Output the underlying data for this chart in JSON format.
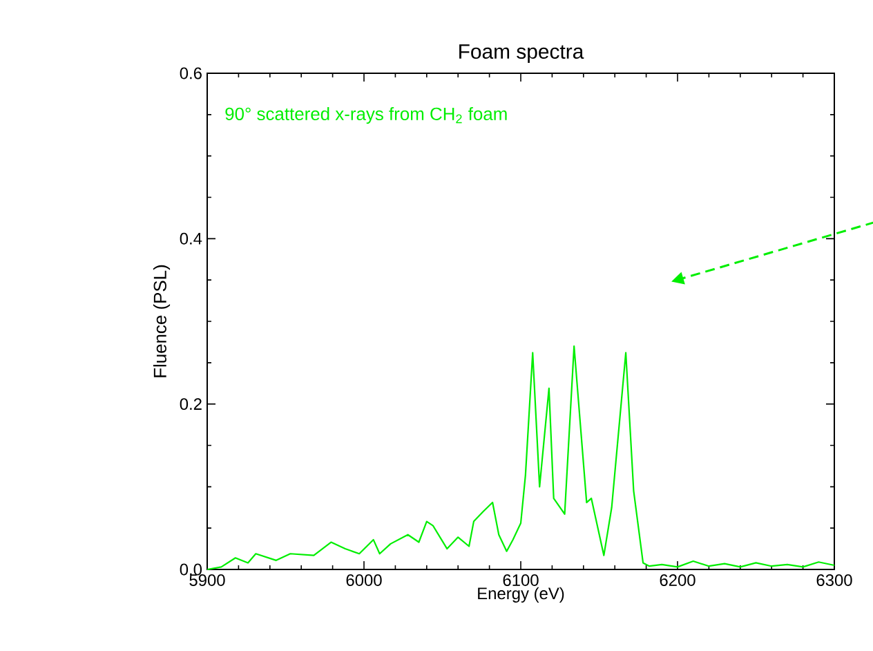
{
  "chart_data": {
    "type": "line",
    "title": "Foam spectra",
    "xlabel": "Energy (eV)",
    "ylabel": "Fluence (PSL)",
    "annotations": [
      "90° scattered x-rays from CH$_{2}$ foam"
    ],
    "xlim": [
      5900,
      6300
    ],
    "xticks": [
      5900,
      6000,
      6100,
      6200,
      6300
    ],
    "ylim": [
      0,
      0.6
    ],
    "yticks": [
      {
        "value": 0,
        "label": "0.0"
      },
      0.2,
      0.4,
      0.6
    ],
    "marker": "none",
    "line_style": "solid",
    "series": [
      {
        "color": "#00ee00",
        "x": [
          5900,
          5909,
          5918,
          5926,
          5931,
          5944,
          5953,
          5968,
          5979,
          5988,
          5997,
          6006,
          6010,
          6017,
          6028,
          6035,
          6040,
          6044,
          6053,
          6060,
          6067,
          6070,
          6076,
          6082,
          6086,
          6091,
          6095,
          6100,
          6103,
          6107.6,
          6112,
          6118,
          6121,
          6128,
          6134,
          6142,
          6145,
          6153,
          6158,
          6167,
          6172,
          6178,
          6182,
          6190,
          6200,
          6210,
          6220,
          6230,
          6240,
          6250,
          6260,
          6270,
          6280,
          6290,
          6300
        ],
        "values": [
          0,
          0.003,
          0.014,
          0.008,
          0.019,
          0.011,
          0.019,
          0.017,
          0.033,
          0.025,
          0.019,
          0.036,
          0.019,
          0.031,
          0.042,
          0.033,
          0.058,
          0.053,
          0.025,
          0.039,
          0.028,
          0.058,
          0.07,
          0.081,
          0.042,
          0.022,
          0.036,
          0.056,
          0.114,
          0.262,
          0.1,
          0.219,
          0.086,
          0.067,
          0.27,
          0.081,
          0.086,
          0.017,
          0.075,
          0.262,
          0.095,
          0.008,
          0.004,
          0.006,
          0.003,
          0.01,
          0.004,
          0.007,
          0.003,
          0.008,
          0.004,
          0.006,
          0.003,
          0.009,
          0.005
        ]
      }
    ]
  }
}
